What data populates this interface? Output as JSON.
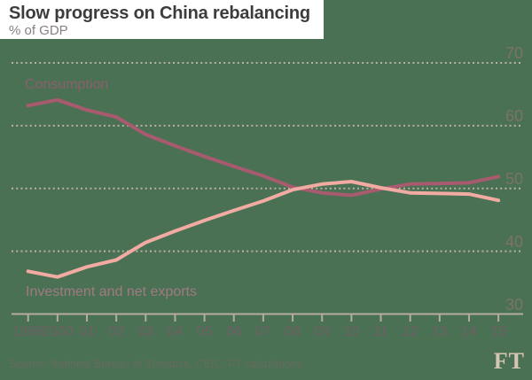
{
  "header": {
    "title": "Slow progress on China rebalancing",
    "subtitle": "% of GDP"
  },
  "footer": {
    "source": "Source: National Bureau of Statistics, CEIC, FT calculations",
    "logo": "FT"
  },
  "chart_data": {
    "type": "line",
    "title": "Slow progress on China rebalancing",
    "subtitle": "% of GDP",
    "x_tick_labels": [
      "1999",
      "2000",
      "01",
      "02",
      "03",
      "04",
      "05",
      "06",
      "07",
      "08",
      "09",
      "10",
      "11",
      "12",
      "13",
      "14",
      "15"
    ],
    "years": [
      1999,
      2000,
      2001,
      2002,
      2003,
      2004,
      2005,
      2006,
      2007,
      2008,
      2009,
      2010,
      2011,
      2012,
      2013,
      2014,
      2015
    ],
    "series": [
      {
        "name": "Consumption",
        "color": "#a85a6e",
        "values": [
          63.2,
          64.1,
          62.5,
          61.4,
          58.6,
          56.8,
          55.1,
          53.5,
          52.0,
          50.2,
          49.3,
          48.9,
          49.9,
          50.7,
          50.8,
          50.9,
          51.9
        ]
      },
      {
        "name": "Investment and net exports",
        "color": "#f1aba2",
        "values": [
          36.8,
          35.9,
          37.5,
          38.6,
          41.4,
          43.2,
          44.9,
          46.5,
          48.0,
          49.8,
          50.7,
          51.1,
          50.1,
          49.3,
          49.2,
          49.1,
          48.1
        ]
      }
    ],
    "ylim": [
      30,
      75
    ],
    "y_ticks": [
      70,
      60,
      50,
      40,
      30
    ],
    "baseline_value": 30,
    "grid": "horizontal dotted gridlines, solid baseline at 30, y-axis labels on right",
    "legend": "inline series labels on chart",
    "colors": {
      "background": "#4b7154",
      "header_background": "#ffffff",
      "gridline": "#b9b1a2",
      "axis": "#b4ac9e",
      "y_label": "#7b7369",
      "x_label": "#6d6065",
      "consumption_line": "#a85a6e",
      "investment_line": "#f1aba2",
      "ft_logo": "#d5c5b5"
    }
  }
}
